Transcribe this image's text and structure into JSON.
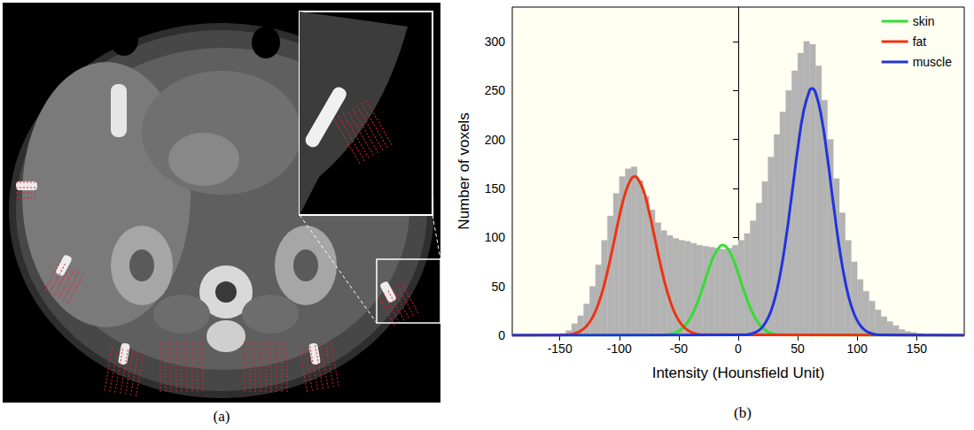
{
  "image_panel": {
    "panel_label": "(a)"
  },
  "chart_data": {
    "type": "histogram",
    "panel_label": "(b)",
    "x_label": "Intensity (Hounsfield Unit)",
    "y_label": "Number of voxels",
    "xlim": [
      -190,
      190
    ],
    "xticks": [
      -150,
      -100,
      -50,
      0,
      50,
      100,
      150
    ],
    "ylim": [
      0,
      335
    ],
    "yticks": [
      0,
      50,
      100,
      150,
      200,
      250,
      300
    ],
    "grid": false,
    "legend": "upper right",
    "color": "#b3b3b3",
    "bins": [
      -150,
      -145,
      -140,
      -135,
      -130,
      -125,
      -120,
      -115,
      -110,
      -105,
      -100,
      -95,
      -90,
      -85,
      -80,
      -75,
      -70,
      -65,
      -60,
      -55,
      -50,
      -45,
      -40,
      -35,
      -30,
      -25,
      -20,
      -15,
      -10,
      -5,
      0,
      5,
      10,
      15,
      20,
      25,
      30,
      35,
      40,
      45,
      50,
      55,
      60,
      65,
      70,
      75,
      80,
      85,
      90,
      95,
      100,
      105,
      110,
      115,
      120,
      125,
      130,
      135,
      140,
      145,
      150,
      155
    ],
    "counts": [
      2,
      5,
      12,
      20,
      32,
      50,
      72,
      97,
      122,
      145,
      162,
      170,
      172,
      158,
      142,
      128,
      115,
      107,
      102,
      99,
      97,
      96,
      94,
      92,
      91,
      90,
      89,
      88,
      89,
      92,
      97,
      104,
      117,
      135,
      157,
      182,
      205,
      228,
      250,
      270,
      288,
      300,
      297,
      275,
      240,
      200,
      160,
      125,
      97,
      75,
      57,
      45,
      35,
      26,
      19,
      14,
      10,
      6,
      4,
      3,
      2
    ],
    "series": [
      {
        "name": "skin",
        "type": "line",
        "color": "#33dd33",
        "x": [
          -190,
          -65,
          -60,
          -55,
          -50,
          -45,
          -40,
          -35,
          -30,
          -25,
          -20,
          -15,
          -13,
          -10,
          -5,
          0,
          5,
          10,
          15,
          20,
          25,
          30,
          35,
          40,
          190
        ],
        "values": [
          0,
          0.2,
          0.7,
          1.8,
          4.4,
          9.4,
          18.2,
          31.4,
          48.4,
          66.8,
          82.5,
          91.2,
          92,
          90.2,
          79.8,
          63.2,
          44.8,
          28.4,
          16.1,
          8.2,
          3.7,
          1.5,
          0.6,
          0.2,
          0
        ]
      },
      {
        "name": "fat",
        "type": "line",
        "color": "#ee3311",
        "x": [
          -190,
          -150,
          -145,
          -140,
          -135,
          -130,
          -125,
          -120,
          -115,
          -110,
          -105,
          -100,
          -95,
          -90,
          -87,
          -85,
          -80,
          -75,
          -70,
          -65,
          -60,
          -55,
          -50,
          -45,
          -40,
          -35,
          -30,
          190
        ],
        "values": [
          0,
          0.2,
          0.5,
          1.2,
          3,
          6.6,
          13.3,
          24.6,
          41.7,
          64.9,
          92.5,
          121,
          145,
          159.5,
          162,
          160.9,
          148.9,
          126.3,
          98.3,
          70.1,
          45.9,
          27.5,
          15.2,
          7.7,
          3.5,
          1.5,
          0.6,
          0
        ]
      },
      {
        "name": "muscle",
        "type": "line",
        "color": "#2233dd",
        "x": [
          -190,
          5,
          10,
          15,
          20,
          25,
          30,
          35,
          40,
          45,
          50,
          55,
          60,
          62,
          65,
          70,
          75,
          80,
          85,
          90,
          95,
          100,
          105,
          110,
          115,
          120,
          190
        ],
        "values": [
          0,
          0.4,
          1.3,
          3.4,
          8,
          17.4,
          34.1,
          60.6,
          97.9,
          143.3,
          190.2,
          229,
          250,
          252,
          247.6,
          222.4,
          181.2,
          133.8,
          89.7,
          54.5,
          30,
          15,
          6.8,
          2.8,
          1,
          0.4,
          0
        ]
      }
    ]
  }
}
